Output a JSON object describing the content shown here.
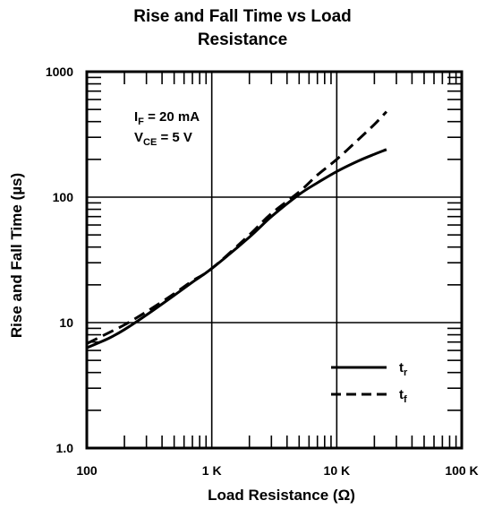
{
  "chart_data": {
    "type": "line",
    "title_line1": "Rise and Fall Time vs Load",
    "title_line2": "Resistance",
    "xlabel": "Load Resistance (Ω)",
    "ylabel": "Rise and Fall Time (µs)",
    "x_scale": "log",
    "y_scale": "log",
    "xlim": [
      100,
      100000
    ],
    "ylim": [
      1,
      1000
    ],
    "x_ticks": [
      {
        "value": 100,
        "label": "100"
      },
      {
        "value": 1000,
        "label": "1 K"
      },
      {
        "value": 10000,
        "label": "10 K"
      },
      {
        "value": 100000,
        "label": "100 K"
      }
    ],
    "y_ticks": [
      {
        "value": 1,
        "label": "1.0"
      },
      {
        "value": 10,
        "label": "10"
      },
      {
        "value": 100,
        "label": "100"
      },
      {
        "value": 1000,
        "label": "1000"
      }
    ],
    "conditions": {
      "line1_main": "I",
      "line1_sub": "F",
      "line1_rest": " = 20 mA",
      "line2_main": "V",
      "line2_sub": "CE",
      "line2_rest": " = 5 V"
    },
    "series": [
      {
        "name": "t",
        "subscript": "r",
        "style": "solid",
        "x": [
          100,
          150,
          200,
          300,
          500,
          700,
          1000,
          2000,
          3000,
          5000,
          7000,
          10000,
          15000,
          20000,
          25000
        ],
        "y": [
          6.3,
          7.5,
          8.8,
          11.5,
          16.5,
          21,
          27,
          48,
          70,
          105,
          130,
          160,
          195,
          220,
          240
        ]
      },
      {
        "name": "t",
        "subscript": "f",
        "style": "dashed",
        "x": [
          100,
          150,
          200,
          300,
          500,
          700,
          1000,
          2000,
          3000,
          5000,
          7000,
          10000,
          15000,
          20000,
          25000
        ],
        "y": [
          6.8,
          8.3,
          9.6,
          12.2,
          17,
          21.5,
          27,
          50,
          74,
          110,
          150,
          200,
          290,
          380,
          480
        ]
      }
    ],
    "grid": true,
    "legend_position": "bottom-right",
    "colors": {
      "line": "#000000",
      "background": "#ffffff"
    }
  }
}
